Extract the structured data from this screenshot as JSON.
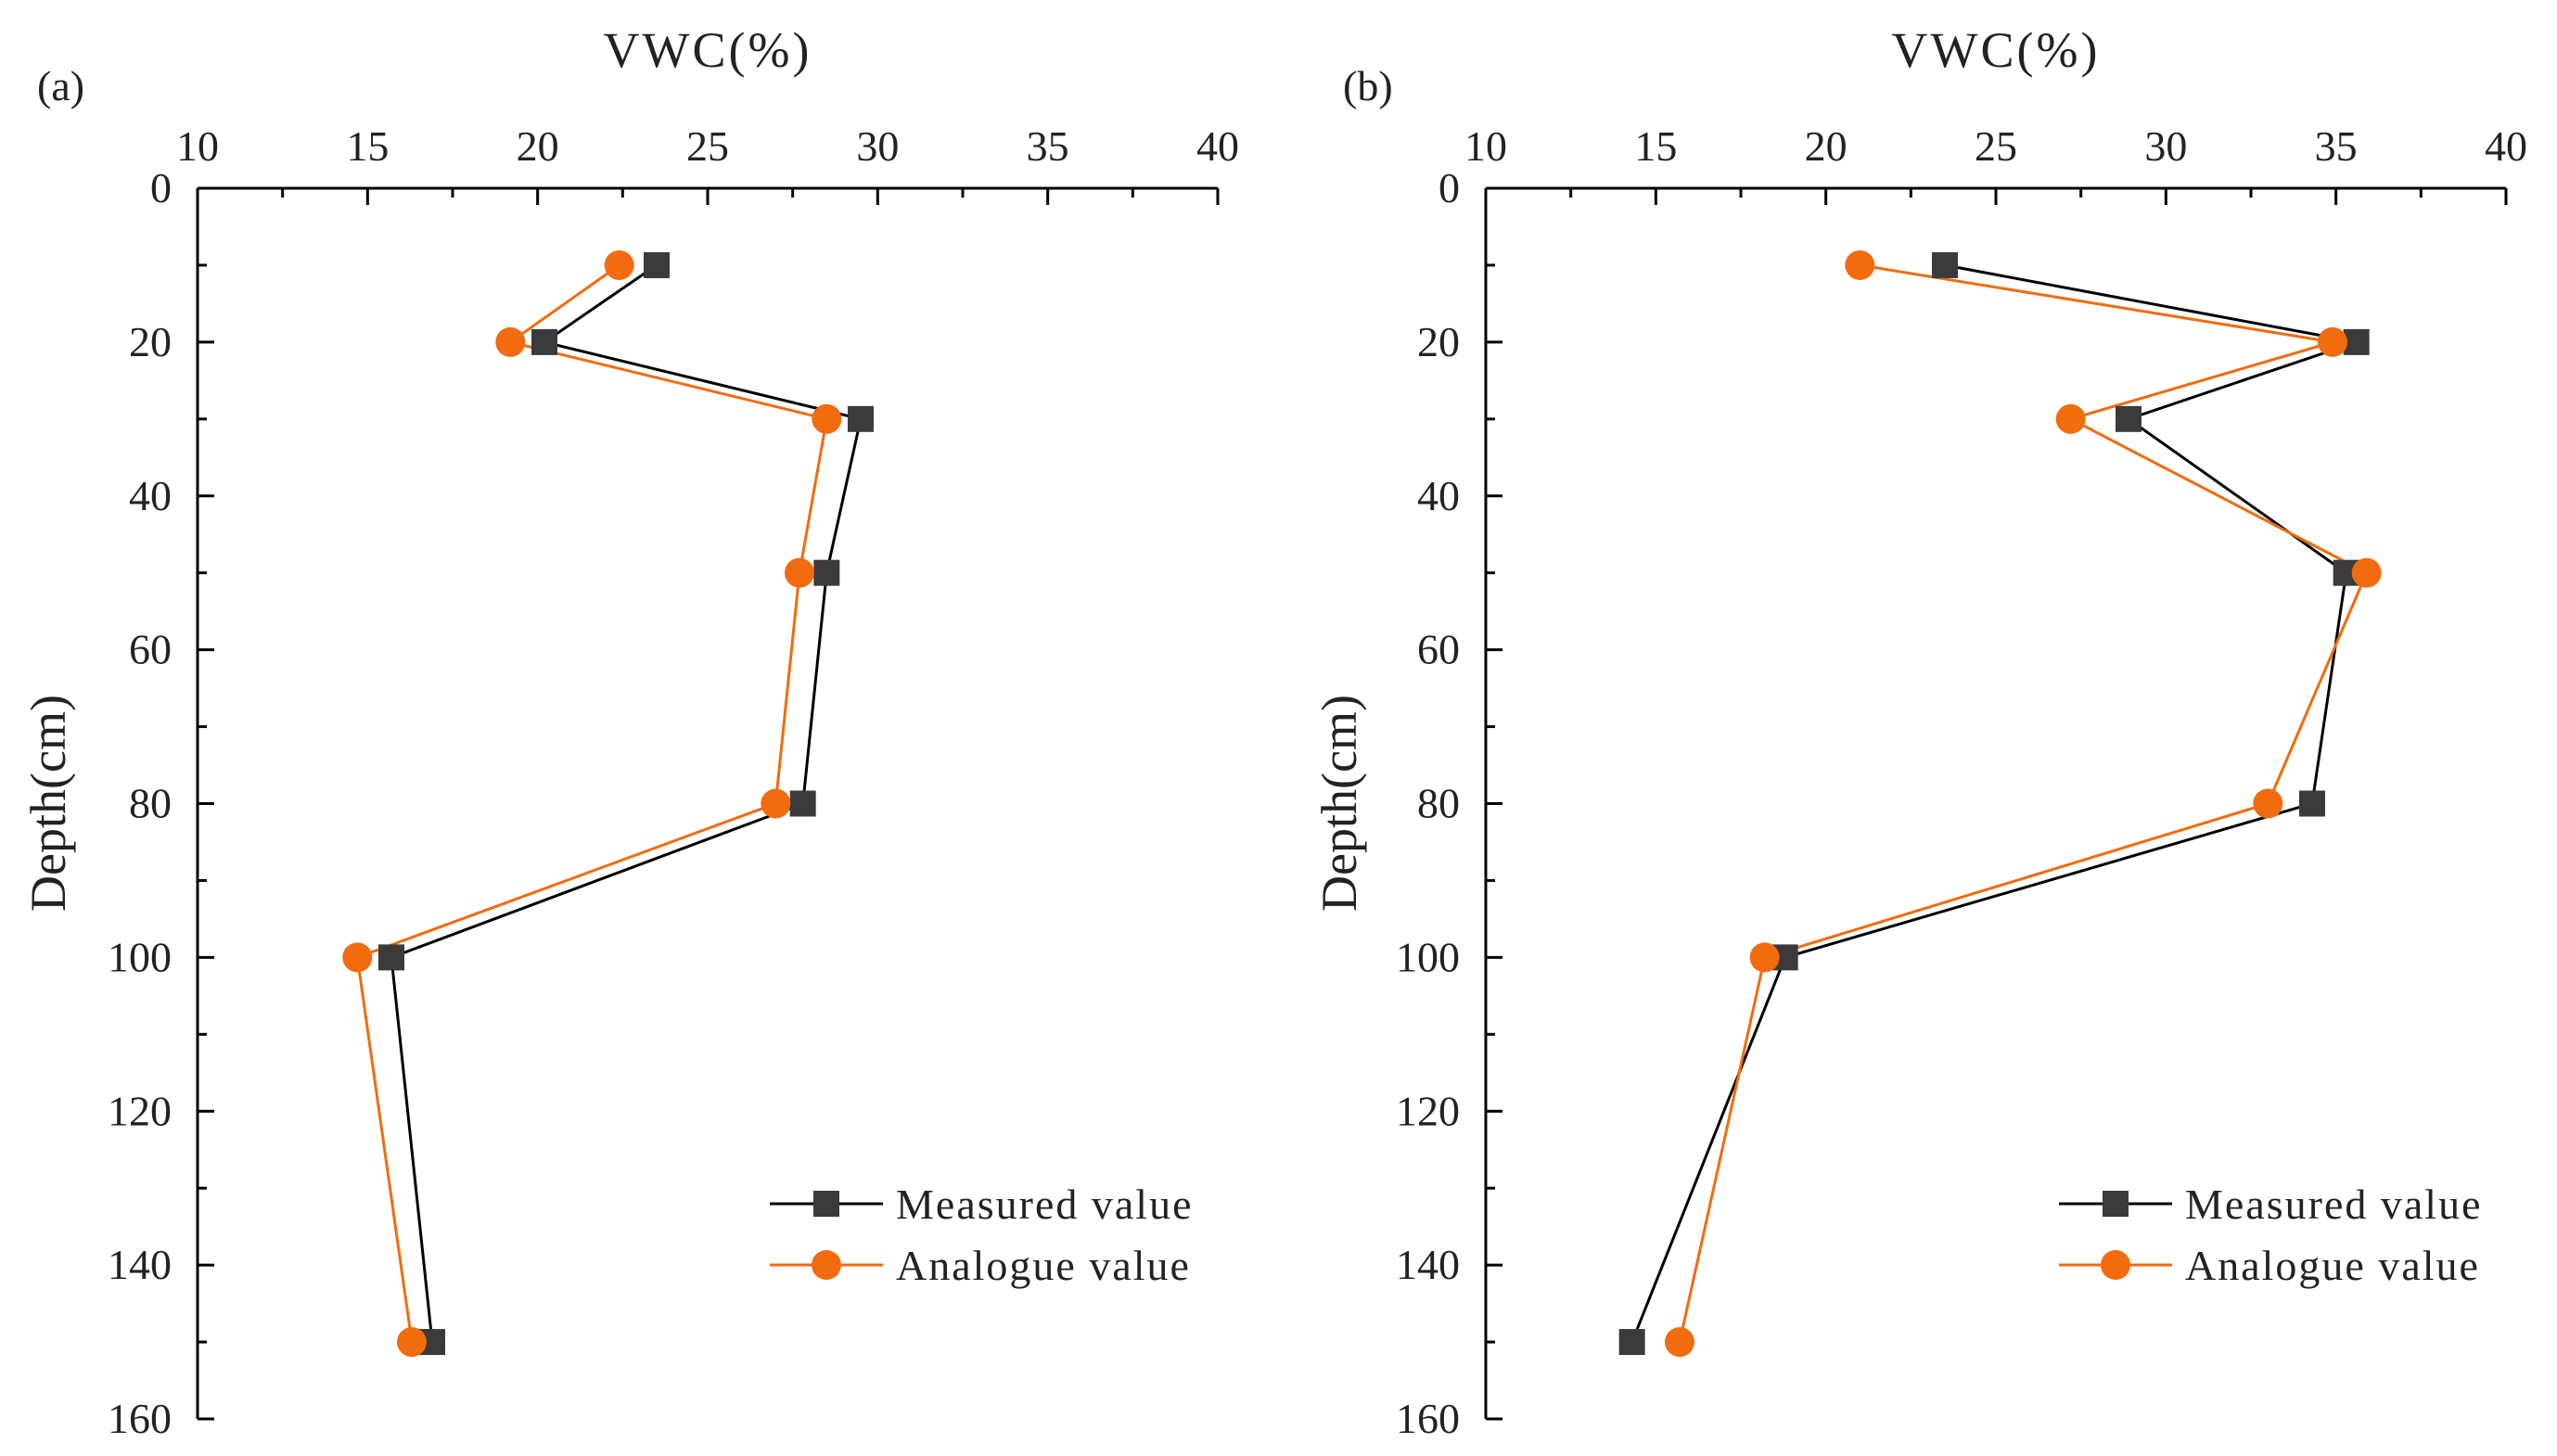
{
  "colors": {
    "measured": "#3b3b3b",
    "analogue": "#f26b0f",
    "axis": "#000000",
    "text": "#222222"
  },
  "chart_data": [
    {
      "type": "line",
      "panel_label": "(a)",
      "title": "VWC(%)",
      "xlabel": "VWC(%)",
      "ylabel": "Depth(cm)",
      "xlim": [
        10,
        40
      ],
      "ylim": [
        0,
        160
      ],
      "y_inverted": true,
      "x_axis_position": "top",
      "x_ticks": [
        "10",
        "15",
        "20",
        "25",
        "30",
        "35",
        "40"
      ],
      "y_ticks": [
        "0",
        "20",
        "40",
        "60",
        "80",
        "100",
        "120",
        "140",
        "160"
      ],
      "legend_position": "bottom-right",
      "series": [
        {
          "name": "Measured value",
          "marker": "square",
          "points": [
            [
              23.5,
              10
            ],
            [
              20.2,
              20
            ],
            [
              29.5,
              30
            ],
            [
              28.5,
              50
            ],
            [
              27.8,
              80
            ],
            [
              15.7,
              100
            ],
            [
              16.9,
              150
            ]
          ]
        },
        {
          "name": "Analogue value",
          "marker": "circle",
          "points": [
            [
              22.4,
              10
            ],
            [
              19.2,
              20
            ],
            [
              28.5,
              30
            ],
            [
              27.7,
              50
            ],
            [
              27.0,
              80
            ],
            [
              14.7,
              100
            ],
            [
              16.3,
              150
            ]
          ]
        }
      ]
    },
    {
      "type": "line",
      "panel_label": "(b)",
      "title": "VWC(%)",
      "xlabel": "VWC(%)",
      "ylabel": "Depth(cm)",
      "xlim": [
        10,
        40
      ],
      "ylim": [
        0,
        160
      ],
      "y_inverted": true,
      "x_axis_position": "top",
      "x_ticks": [
        "10",
        "15",
        "20",
        "25",
        "30",
        "35",
        "40"
      ],
      "y_ticks": [
        "0",
        "20",
        "40",
        "60",
        "80",
        "100",
        "120",
        "140",
        "160"
      ],
      "legend_position": "bottom-right",
      "series": [
        {
          "name": "Measured value",
          "marker": "square",
          "points": [
            [
              23.5,
              10
            ],
            [
              35.6,
              20
            ],
            [
              28.9,
              30
            ],
            [
              35.3,
              50
            ],
            [
              34.3,
              80
            ],
            [
              18.8,
              100
            ],
            [
              14.3,
              150
            ]
          ]
        },
        {
          "name": "Analogue value",
          "marker": "circle",
          "points": [
            [
              21.0,
              10
            ],
            [
              34.9,
              20
            ],
            [
              27.2,
              30
            ],
            [
              35.9,
              50
            ],
            [
              33.0,
              80
            ],
            [
              18.2,
              100
            ],
            [
              15.7,
              150
            ]
          ]
        }
      ]
    }
  ]
}
